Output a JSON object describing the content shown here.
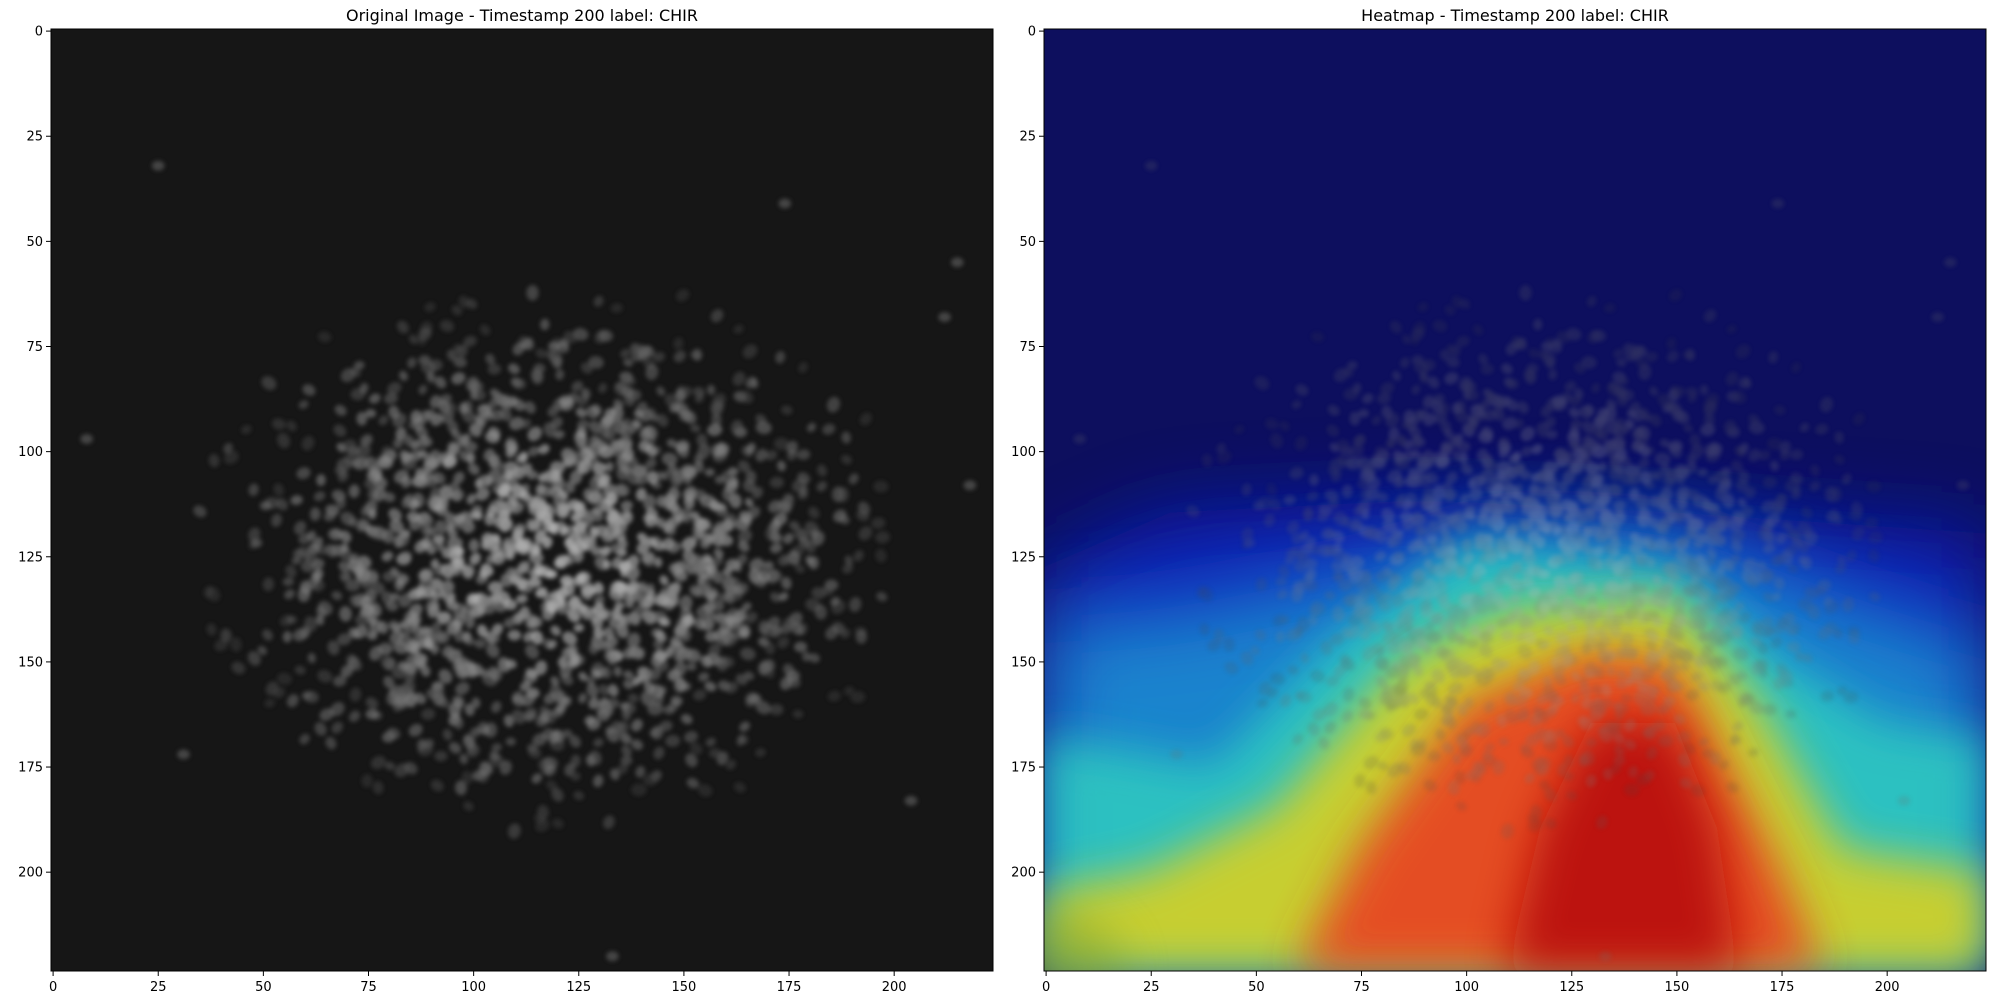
{
  "chart_data": [
    {
      "type": "image",
      "title": "Original Image - Timestamp 200 label: CHIR",
      "colormap": "gray",
      "image_size": [
        224,
        224
      ],
      "xlim": [
        0,
        224
      ],
      "ylim": [
        224,
        0
      ],
      "x_ticks": [
        0,
        25,
        50,
        75,
        100,
        125,
        150,
        175,
        200
      ],
      "y_ticks": [
        0,
        25,
        50,
        75,
        100,
        125,
        150,
        175,
        200
      ],
      "background_color": "#161616",
      "content": "fluorescent nuclei in an elliptical colony",
      "colony_center": [
        118,
        125
      ],
      "colony_radii": [
        82,
        62
      ]
    },
    {
      "type": "heatmap",
      "title": "Heatmap - Timestamp 200 label: CHIR",
      "colormap": "jet",
      "overlay": "original image",
      "image_size": [
        224,
        224
      ],
      "xlim": [
        0,
        224
      ],
      "ylim": [
        224,
        0
      ],
      "x_ticks": [
        0,
        25,
        50,
        75,
        100,
        125,
        150,
        175,
        200
      ],
      "y_ticks": [
        0,
        25,
        50,
        75,
        100,
        125,
        150,
        175,
        200
      ],
      "hotspot_center": [
        142,
        185
      ],
      "max_activation_region": "lower center"
    }
  ],
  "colors": {
    "gray_background": "#161616",
    "nuclei": "#bdbdbd",
    "jet_low": "#0d0f5e",
    "jet_high": "#b81010"
  }
}
